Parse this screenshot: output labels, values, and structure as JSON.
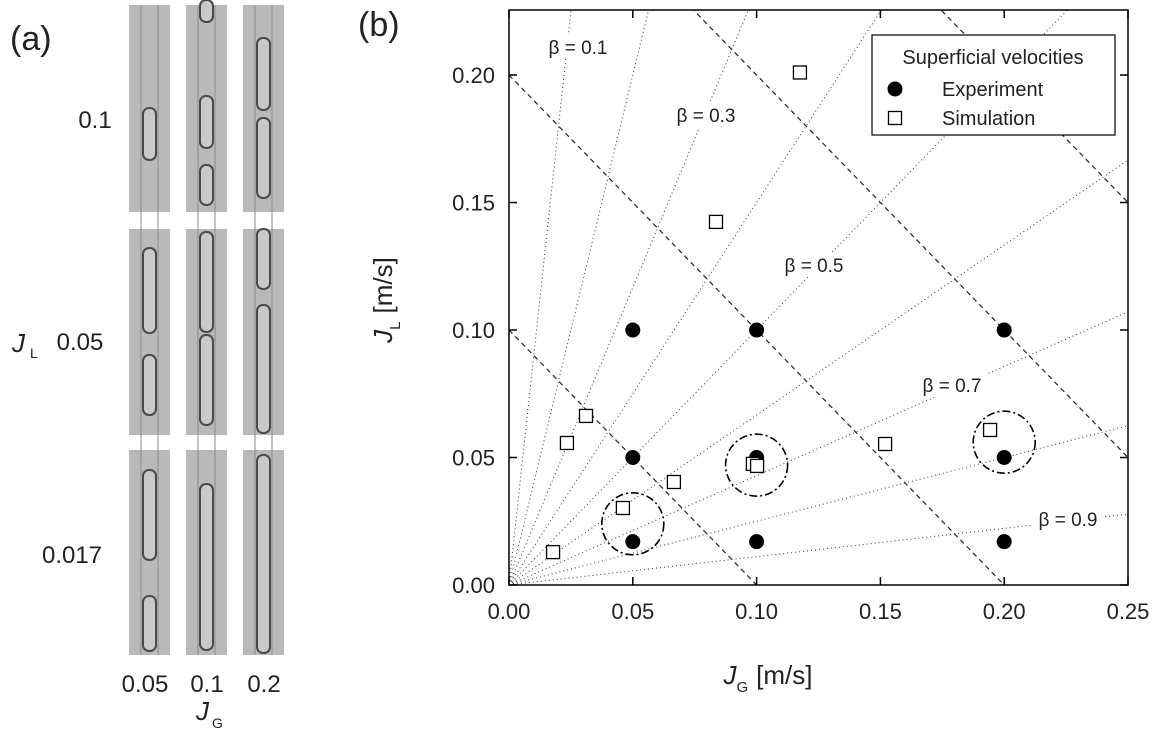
{
  "panel_a": {
    "label": "(a)",
    "row_labels": [
      "0.1",
      "0.05",
      "0.017"
    ],
    "col_labels": [
      "0.05",
      "0.1",
      "0.2"
    ],
    "y_label": {
      "symbol": "J",
      "subscript": "L"
    },
    "x_label": {
      "symbol": "J",
      "subscript": "G"
    }
  },
  "chart_data": {
    "type": "scatter",
    "panel_label": "(b)",
    "x_label": {
      "symbol": "J",
      "subscript": "G",
      "unit": "[m/s]"
    },
    "y_label": {
      "symbol": "J",
      "subscript": "L",
      "unit": "[m/s]"
    },
    "xlim": [
      0,
      0.25
    ],
    "ylim": [
      0,
      0.2255
    ],
    "xticks": [
      {
        "value": 0,
        "label": "0.00"
      },
      {
        "value": 0.05,
        "label": "0.05"
      },
      {
        "value": 0.1,
        "label": "0.10"
      },
      {
        "value": 0.15,
        "label": "0.15"
      },
      {
        "value": 0.2,
        "label": "0.20"
      },
      {
        "value": 0.25,
        "label": "0.25"
      }
    ],
    "yticks": [
      {
        "value": 0,
        "label": "0.00"
      },
      {
        "value": 0.05,
        "label": "0.05"
      },
      {
        "value": 0.1,
        "label": "0.10"
      },
      {
        "value": 0.15,
        "label": "0.15"
      },
      {
        "value": 0.2,
        "label": "0.20"
      }
    ],
    "legend": {
      "title": "Superficial velocities",
      "position": "upper right"
    },
    "series": [
      {
        "name": "Experiment",
        "marker": "filled-circle",
        "color": "#000000",
        "x": [
          0.05,
          0.1,
          0.2,
          0.05,
          0.1,
          0.2,
          0.05,
          0.1,
          0.2
        ],
        "values": [
          0.1,
          0.1,
          0.1,
          0.05,
          0.05,
          0.05,
          0.017,
          0.017,
          0.017
        ]
      },
      {
        "name": "Simulation",
        "marker": "open-square",
        "color": "#000000",
        "x": [
          0.1175,
          0.0836,
          0.0311,
          0.0234,
          0.1519,
          0.0666,
          0.0985,
          0.1002,
          0.046,
          0.0178,
          0.1943
        ],
        "values": [
          0.201,
          0.1424,
          0.0663,
          0.0557,
          0.0553,
          0.0404,
          0.0475,
          0.0467,
          0.0302,
          0.0129,
          0.0608
        ]
      }
    ],
    "beta_lines": [
      0.1,
      0.2,
      0.3,
      0.4,
      0.5,
      0.6,
      0.7,
      0.8,
      0.9
    ],
    "beta_labels": [
      "β = 0.1",
      null,
      "β = 0.3",
      null,
      "β = 0.5",
      null,
      "β = 0.7",
      null,
      "β = 0.9"
    ],
    "total_velocity_lines": [
      0.1,
      0.2,
      0.3,
      0.4
    ],
    "circles": {
      "x": [
        0.05,
        0.1,
        0.2
      ],
      "values": [
        0.024,
        0.047,
        0.056
      ]
    }
  }
}
